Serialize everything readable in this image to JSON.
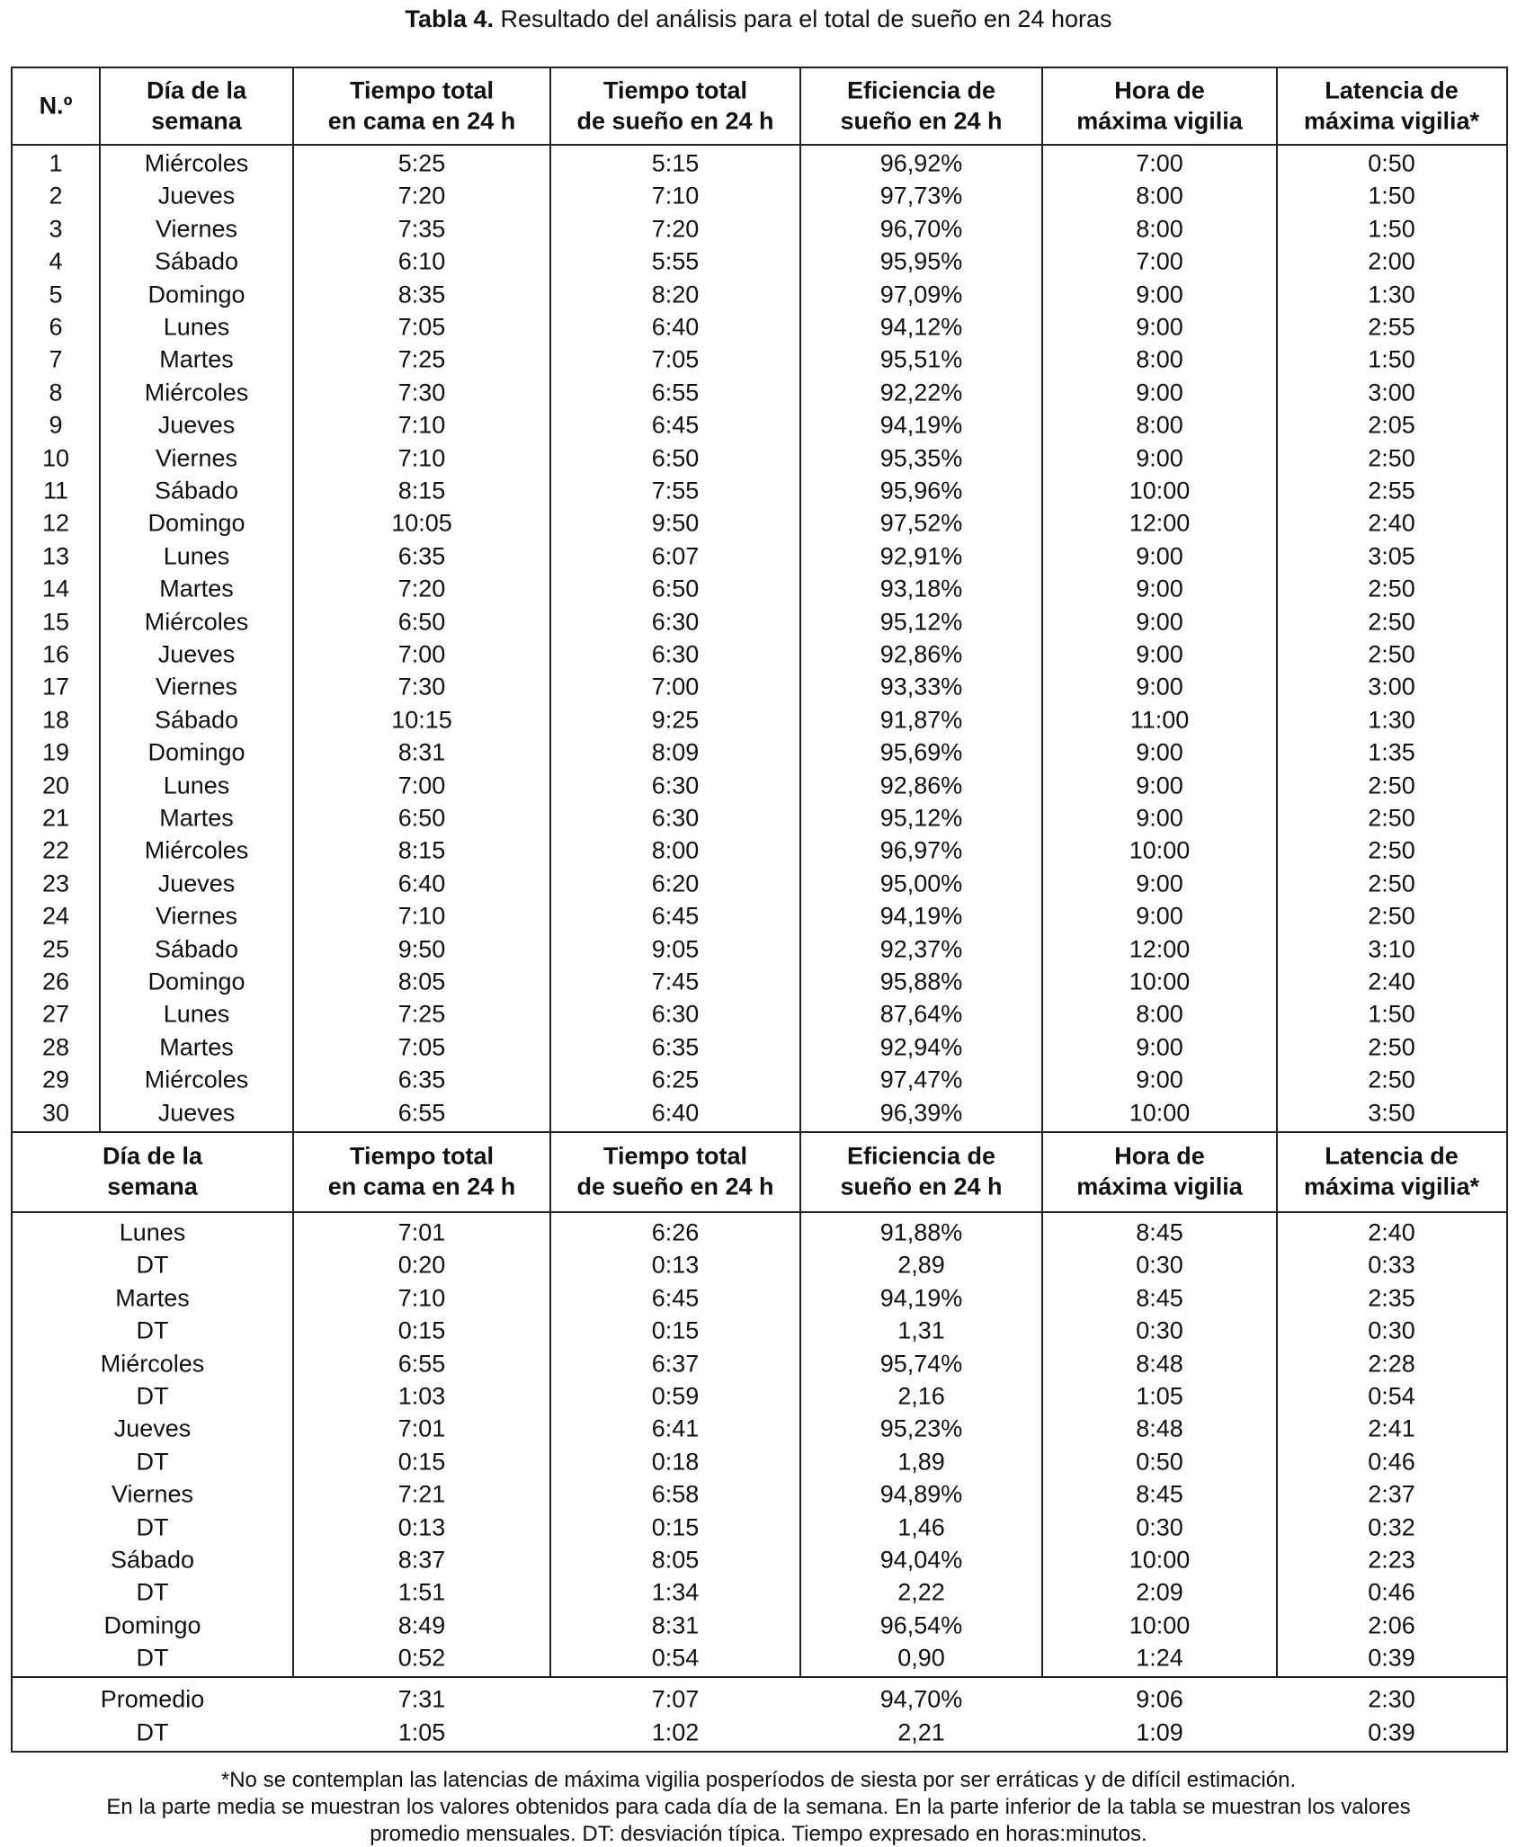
{
  "title": {
    "label": "Tabla 4.",
    "text": "Resultado del análisis para el total de sueño en 24 horas"
  },
  "daily_table": {
    "header": [
      [
        "N.º"
      ],
      [
        "Día de la",
        "semana"
      ],
      [
        "Tiempo total",
        "en cama en 24 h"
      ],
      [
        "Tiempo total",
        "de sueño en 24 h"
      ],
      [
        "Eficiencia de",
        "sueño en 24 h"
      ],
      [
        "Hora de",
        "máxima vigilia"
      ],
      [
        "Latencia de",
        "máxima vigilia*"
      ]
    ],
    "rows": [
      [
        1,
        "Miércoles",
        "5:25",
        "5:15",
        "96,92%",
        "7:00",
        "0:50"
      ],
      [
        2,
        "Jueves",
        "7:20",
        "7:10",
        "97,73%",
        "8:00",
        "1:50"
      ],
      [
        3,
        "Viernes",
        "7:35",
        "7:20",
        "96,70%",
        "8:00",
        "1:50"
      ],
      [
        4,
        "Sábado",
        "6:10",
        "5:55",
        "95,95%",
        "7:00",
        "2:00"
      ],
      [
        5,
        "Domingo",
        "8:35",
        "8:20",
        "97,09%",
        "9:00",
        "1:30"
      ],
      [
        6,
        "Lunes",
        "7:05",
        "6:40",
        "94,12%",
        "9:00",
        "2:55"
      ],
      [
        7,
        "Martes",
        "7:25",
        "7:05",
        "95,51%",
        "8:00",
        "1:50"
      ],
      [
        8,
        "Miércoles",
        "7:30",
        "6:55",
        "92,22%",
        "9:00",
        "3:00"
      ],
      [
        9,
        "Jueves",
        "7:10",
        "6:45",
        "94,19%",
        "8:00",
        "2:05"
      ],
      [
        10,
        "Viernes",
        "7:10",
        "6:50",
        "95,35%",
        "9:00",
        "2:50"
      ],
      [
        11,
        "Sábado",
        "8:15",
        "7:55",
        "95,96%",
        "10:00",
        "2:55"
      ],
      [
        12,
        "Domingo",
        "10:05",
        "9:50",
        "97,52%",
        "12:00",
        "2:40"
      ],
      [
        13,
        "Lunes",
        "6:35",
        "6:07",
        "92,91%",
        "9:00",
        "3:05"
      ],
      [
        14,
        "Martes",
        "7:20",
        "6:50",
        "93,18%",
        "9:00",
        "2:50"
      ],
      [
        15,
        "Miércoles",
        "6:50",
        "6:30",
        "95,12%",
        "9:00",
        "2:50"
      ],
      [
        16,
        "Jueves",
        "7:00",
        "6:30",
        "92,86%",
        "9:00",
        "2:50"
      ],
      [
        17,
        "Viernes",
        "7:30",
        "7:00",
        "93,33%",
        "9:00",
        "3:00"
      ],
      [
        18,
        "Sábado",
        "10:15",
        "9:25",
        "91,87%",
        "11:00",
        "1:30"
      ],
      [
        19,
        "Domingo",
        "8:31",
        "8:09",
        "95,69%",
        "9:00",
        "1:35"
      ],
      [
        20,
        "Lunes",
        "7:00",
        "6:30",
        "92,86%",
        "9:00",
        "2:50"
      ],
      [
        21,
        "Martes",
        "6:50",
        "6:30",
        "95,12%",
        "9:00",
        "2:50"
      ],
      [
        22,
        "Miércoles",
        "8:15",
        "8:00",
        "96,97%",
        "10:00",
        "2:50"
      ],
      [
        23,
        "Jueves",
        "6:40",
        "6:20",
        "95,00%",
        "9:00",
        "2:50"
      ],
      [
        24,
        "Viernes",
        "7:10",
        "6:45",
        "94,19%",
        "9:00",
        "2:50"
      ],
      [
        25,
        "Sábado",
        "9:50",
        "9:05",
        "92,37%",
        "12:00",
        "3:10"
      ],
      [
        26,
        "Domingo",
        "8:05",
        "7:45",
        "95,88%",
        "10:00",
        "2:40"
      ],
      [
        27,
        "Lunes",
        "7:25",
        "6:30",
        "87,64%",
        "8:00",
        "1:50"
      ],
      [
        28,
        "Martes",
        "7:05",
        "6:35",
        "92,94%",
        "9:00",
        "2:50"
      ],
      [
        29,
        "Miércoles",
        "6:35",
        "6:25",
        "97,47%",
        "9:00",
        "2:50"
      ],
      [
        30,
        "Jueves",
        "6:55",
        "6:40",
        "96,39%",
        "10:00",
        "3:50"
      ]
    ]
  },
  "weekday_table": {
    "header": [
      [
        "Día de la",
        "semana"
      ],
      [
        "Tiempo total",
        "en cama en 24 h"
      ],
      [
        "Tiempo total",
        "de sueño en 24 h"
      ],
      [
        "Eficiencia de",
        "sueño en 24 h"
      ],
      [
        "Hora de",
        "máxima vigilia"
      ],
      [
        "Latencia de",
        "máxima vigilia*"
      ]
    ],
    "rows": [
      [
        "Lunes",
        "7:01",
        "6:26",
        "91,88%",
        "8:45",
        "2:40"
      ],
      [
        "DT",
        "0:20",
        "0:13",
        "2,89",
        "0:30",
        "0:33"
      ],
      [
        "Martes",
        "7:10",
        "6:45",
        "94,19%",
        "8:45",
        "2:35"
      ],
      [
        "DT",
        "0:15",
        "0:15",
        "1,31",
        "0:30",
        "0:30"
      ],
      [
        "Miércoles",
        "6:55",
        "6:37",
        "95,74%",
        "8:48",
        "2:28"
      ],
      [
        "DT",
        "1:03",
        "0:59",
        "2,16",
        "1:05",
        "0:54"
      ],
      [
        "Jueves",
        "7:01",
        "6:41",
        "95,23%",
        "8:48",
        "2:41"
      ],
      [
        "DT",
        "0:15",
        "0:18",
        "1,89",
        "0:50",
        "0:46"
      ],
      [
        "Viernes",
        "7:21",
        "6:58",
        "94,89%",
        "8:45",
        "2:37"
      ],
      [
        "DT",
        "0:13",
        "0:15",
        "1,46",
        "0:30",
        "0:32"
      ],
      [
        "Sábado",
        "8:37",
        "8:05",
        "94,04%",
        "10:00",
        "2:23"
      ],
      [
        "DT",
        "1:51",
        "1:34",
        "2,22",
        "2:09",
        "0:46"
      ],
      [
        "Domingo",
        "8:49",
        "8:31",
        "96,54%",
        "10:00",
        "2:06"
      ],
      [
        "DT",
        "0:52",
        "0:54",
        "0,90",
        "1:24",
        "0:39"
      ]
    ]
  },
  "summary_table": {
    "rows": [
      [
        "Promedio",
        "7:31",
        "7:07",
        "94,70%",
        "9:06",
        "2:30"
      ],
      [
        "DT",
        "1:05",
        "1:02",
        "2,21",
        "1:09",
        "0:39"
      ]
    ]
  },
  "footnotes": [
    "*No se contemplan las latencias de máxima vigilia posperíodos de siesta por ser erráticas y de difícil estimación.",
    "En la parte media se muestran los valores obtenidos para cada día de la semana. En la parte inferior de la tabla se muestran los valores",
    "promedio mensuales. DT: desviación típica. Tiempo expresado en horas:minutos."
  ]
}
